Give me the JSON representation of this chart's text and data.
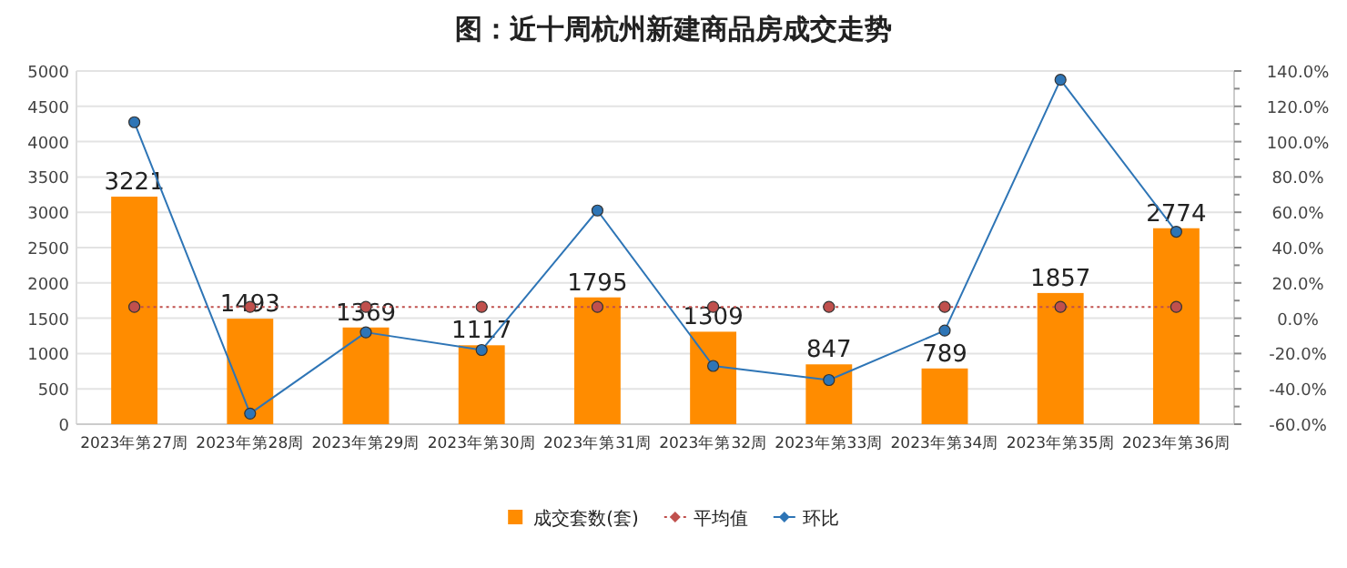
{
  "chart_data": {
    "type": "bar",
    "title": "图：近十周杭州新建商品房成交走势",
    "categories": [
      "2023年第27周",
      "2023年第28周",
      "2023年第29周",
      "2023年第30周",
      "2023年第31周",
      "2023年第32周",
      "2023年第33周",
      "2023年第34周",
      "2023年第35周",
      "2023年第36周"
    ],
    "series": [
      {
        "name": "成交套数(套)",
        "color": "#ff8c00",
        "values": [
          3221,
          1493,
          1369,
          1117,
          1795,
          1309,
          847,
          789,
          1857,
          2774
        ],
        "value_labels": [
          "3221",
          "1493",
          "1369",
          "1117",
          "1795",
          "1309",
          "847",
          "789",
          "1857",
          "2774"
        ]
      },
      {
        "name": "平均值",
        "type": "line",
        "color": "#c0504d",
        "line_style": "dotted",
        "marker": "circle",
        "values": [
          1660,
          1660,
          1660,
          1660,
          1660,
          1660,
          1660,
          1660,
          1660,
          1660
        ]
      },
      {
        "name": "环比",
        "type": "line",
        "axis": "y2",
        "color": "#2e75b6",
        "line_style": "solid",
        "marker": "circle",
        "values": [
          111,
          -54,
          -8,
          -18,
          61,
          -27,
          -35,
          -7,
          135,
          49
        ]
      }
    ],
    "ylim": [
      0,
      5000
    ],
    "yticks": [
      0,
      500,
      1000,
      1500,
      2000,
      2500,
      3000,
      3500,
      4000,
      4500,
      5000
    ],
    "y2lim": [
      -60,
      140
    ],
    "y2ticks": [
      {
        "value": -60,
        "label": "-60.0%"
      },
      {
        "value": -40,
        "label": "-40.0%"
      },
      {
        "value": -20,
        "label": "-20.0%"
      },
      {
        "value": 0,
        "label": "0.0%"
      },
      {
        "value": 20,
        "label": "20.0%"
      },
      {
        "value": 40,
        "label": "40.0%"
      },
      {
        "value": 60,
        "label": "60.0%"
      },
      {
        "value": 80,
        "label": "80.0%"
      },
      {
        "value": 100,
        "label": "100.0%"
      },
      {
        "value": 120,
        "label": "120.0%"
      },
      {
        "value": 140,
        "label": "140.0%"
      }
    ],
    "grid": "y",
    "legend": "bottom"
  }
}
